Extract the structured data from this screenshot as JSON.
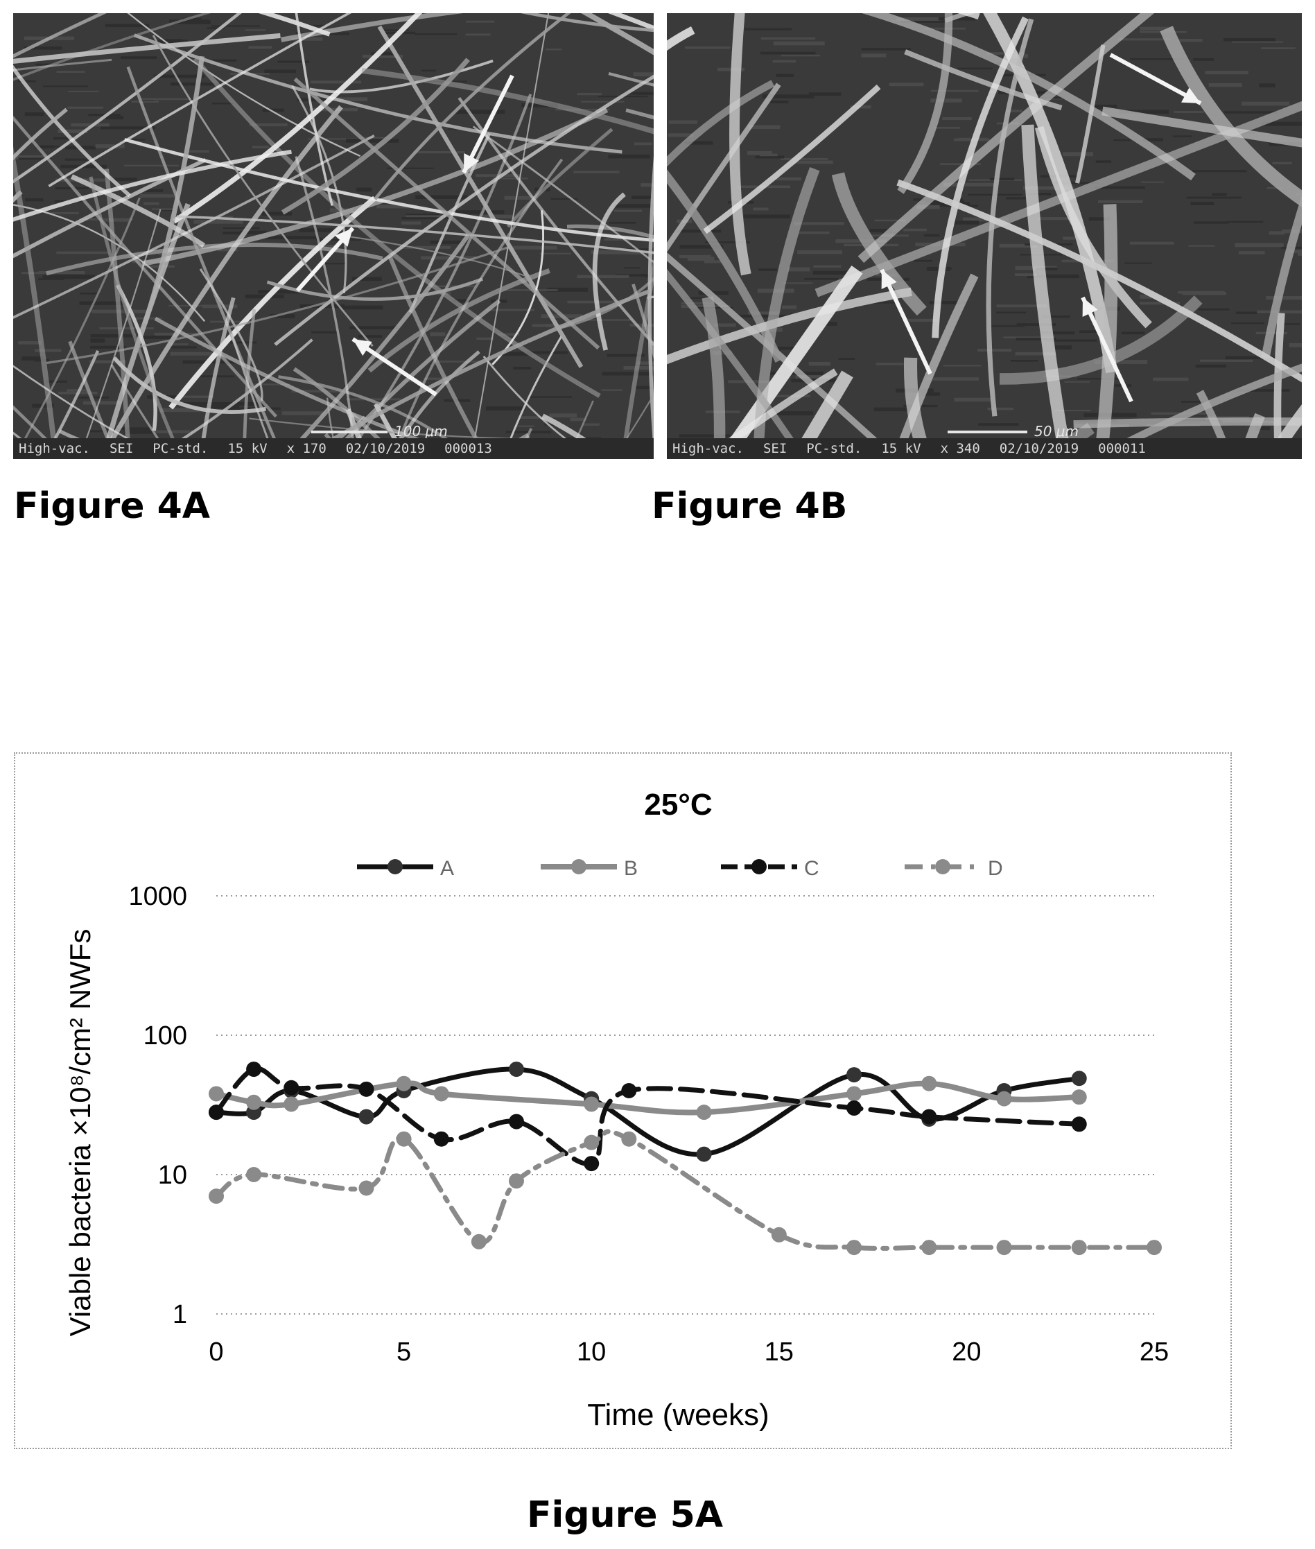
{
  "figure_4a": {
    "label": "Figure 4A",
    "footer": [
      "High-vac.",
      "SEI",
      "PC-std.",
      "15 kV",
      "x 170",
      "02/10/2019",
      "000013"
    ],
    "scale_text": "100 μm"
  },
  "figure_4b": {
    "label": "Figure 4B",
    "footer": [
      "High-vac.",
      "SEI",
      "PC-std.",
      "15 kV",
      "x 340",
      "02/10/2019",
      "000011"
    ],
    "scale_text": "50 μm"
  },
  "figure_5a": {
    "label": "Figure 5A"
  },
  "chart_data": {
    "type": "line",
    "title": "25°C",
    "xlabel": "Time (weeks)",
    "ylabel": "Viable bacteria ×10⁸/cm² NWFs",
    "xlim": [
      0,
      25
    ],
    "ylim": [
      1,
      1000
    ],
    "y_scale": "log",
    "x_ticks": [
      "0",
      "5",
      "10",
      "15",
      "20",
      "25"
    ],
    "y_ticks": [
      "1",
      "10",
      "100",
      "1000"
    ],
    "grid": "horizontal dotted",
    "legend_position": "top",
    "series": [
      {
        "name": "A",
        "style": "solid",
        "color": "#111111",
        "x": [
          0,
          1,
          2,
          4,
          5,
          8,
          10,
          13,
          17,
          19,
          21,
          23
        ],
        "y": [
          28,
          28,
          40,
          26,
          40,
          57,
          35,
          14,
          52,
          25,
          40,
          49
        ]
      },
      {
        "name": "B",
        "style": "solid-light",
        "color": "#8a8a8a",
        "x": [
          0,
          1,
          2,
          5,
          6,
          10,
          13,
          17,
          19,
          21,
          23
        ],
        "y": [
          38,
          33,
          32,
          45,
          38,
          32,
          28,
          38,
          45,
          35,
          36
        ]
      },
      {
        "name": "C",
        "style": "dashed",
        "color": "#111111",
        "x": [
          0,
          1,
          2,
          4,
          6,
          8,
          10,
          11,
          17,
          19,
          23
        ],
        "y": [
          28,
          57,
          42,
          41,
          18,
          24,
          12,
          40,
          30,
          26,
          23
        ]
      },
      {
        "name": "D",
        "style": "dash-dot-light",
        "color": "#8a8a8a",
        "x": [
          0,
          1,
          4,
          5,
          7,
          8,
          10,
          11,
          15,
          17,
          19,
          21,
          23,
          25
        ],
        "y": [
          7,
          10,
          8,
          18,
          3.3,
          9,
          17,
          18,
          3.7,
          3,
          3,
          3,
          3,
          3
        ]
      }
    ]
  }
}
